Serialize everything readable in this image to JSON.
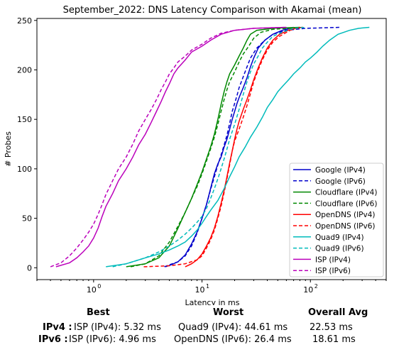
{
  "chart_data": {
    "type": "line",
    "title": "September_2022: DNS Latency Comparison with Akamai (mean)",
    "xlabel": "Latency in ms",
    "ylabel": "# Probes",
    "xscale": "log",
    "xlim": [
      0.3,
      500
    ],
    "ylim": [
      -12,
      252
    ],
    "x_ticks": [
      {
        "value": 1,
        "label": "10",
        "exp": "0"
      },
      {
        "value": 10,
        "label": "10",
        "exp": "1"
      },
      {
        "value": 100,
        "label": "10",
        "exp": "2"
      }
    ],
    "y_ticks": [
      0,
      50,
      100,
      150,
      200,
      250
    ],
    "grid": false,
    "legend_position": "lower-right",
    "series": [
      {
        "name": "Google (IPv4)",
        "color": "#0000cc",
        "dash": "solid",
        "points": [
          [
            4.6,
            1
          ],
          [
            5.2,
            3
          ],
          [
            6,
            6
          ],
          [
            7,
            13
          ],
          [
            8,
            24
          ],
          [
            9,
            36
          ],
          [
            10,
            50
          ],
          [
            11,
            64
          ],
          [
            12,
            80
          ],
          [
            13,
            95
          ],
          [
            14,
            105
          ],
          [
            15,
            112
          ],
          [
            16,
            122
          ],
          [
            17,
            130
          ],
          [
            18,
            140
          ],
          [
            19,
            150
          ],
          [
            20,
            158
          ],
          [
            21,
            166
          ],
          [
            22,
            172
          ],
          [
            24,
            182
          ],
          [
            26,
            192
          ],
          [
            28,
            203
          ],
          [
            30,
            212
          ],
          [
            33,
            222
          ],
          [
            38,
            230
          ],
          [
            45,
            236
          ],
          [
            55,
            240
          ],
          [
            70,
            243
          ]
        ]
      },
      {
        "name": "Google (IPv6)",
        "color": "#0000cc",
        "dash": "dashed",
        "points": [
          [
            4.5,
            1
          ],
          [
            5,
            3
          ],
          [
            6,
            6
          ],
          [
            7,
            12
          ],
          [
            8,
            22
          ],
          [
            9,
            35
          ],
          [
            10,
            50
          ],
          [
            11,
            64
          ],
          [
            12,
            79
          ],
          [
            13,
            92
          ],
          [
            14,
            104
          ],
          [
            15,
            114
          ],
          [
            16,
            124
          ],
          [
            17,
            134
          ],
          [
            18,
            146
          ],
          [
            19,
            158
          ],
          [
            20,
            166
          ],
          [
            21,
            174
          ],
          [
            22,
            182
          ],
          [
            24,
            193
          ],
          [
            26,
            203
          ],
          [
            28,
            212
          ],
          [
            32,
            222
          ],
          [
            38,
            230
          ],
          [
            45,
            236
          ],
          [
            60,
            240
          ],
          [
            90,
            242
          ],
          [
            190,
            243
          ]
        ]
      },
      {
        "name": "Cloudflare (IPv4)",
        "color": "#008800",
        "dash": "solid",
        "points": [
          [
            2,
            1
          ],
          [
            3,
            4
          ],
          [
            4,
            10
          ],
          [
            5,
            22
          ],
          [
            6,
            40
          ],
          [
            7,
            56
          ],
          [
            8,
            70
          ],
          [
            9,
            84
          ],
          [
            10,
            97
          ],
          [
            11,
            110
          ],
          [
            12,
            122
          ],
          [
            13,
            135
          ],
          [
            14,
            150
          ],
          [
            15,
            165
          ],
          [
            16,
            178
          ],
          [
            17,
            188
          ],
          [
            18,
            196
          ],
          [
            20,
            205
          ],
          [
            22,
            214
          ],
          [
            24,
            222
          ],
          [
            26,
            230
          ],
          [
            28,
            236
          ],
          [
            32,
            240
          ],
          [
            45,
            242
          ],
          [
            80,
            243
          ]
        ]
      },
      {
        "name": "Cloudflare (IPv6)",
        "color": "#008800",
        "dash": "dashed",
        "points": [
          [
            2.2,
            1
          ],
          [
            3,
            4
          ],
          [
            4,
            12
          ],
          [
            5,
            26
          ],
          [
            6,
            42
          ],
          [
            7,
            56
          ],
          [
            8,
            70
          ],
          [
            9,
            82
          ],
          [
            10,
            95
          ],
          [
            11,
            108
          ],
          [
            12,
            120
          ],
          [
            13,
            132
          ],
          [
            14,
            145
          ],
          [
            15,
            158
          ],
          [
            16,
            170
          ],
          [
            17,
            180
          ],
          [
            18,
            188
          ],
          [
            20,
            198
          ],
          [
            22,
            208
          ],
          [
            24,
            216
          ],
          [
            27,
            224
          ],
          [
            30,
            232
          ],
          [
            35,
            238
          ],
          [
            45,
            241
          ],
          [
            85,
            243
          ]
        ]
      },
      {
        "name": "OpenDNS (IPv4)",
        "color": "#ff0000",
        "dash": "solid",
        "points": [
          [
            7,
            1
          ],
          [
            8,
            4
          ],
          [
            9,
            8
          ],
          [
            10,
            14
          ],
          [
            11,
            22
          ],
          [
            12,
            30
          ],
          [
            13,
            40
          ],
          [
            14,
            52
          ],
          [
            15,
            65
          ],
          [
            16,
            78
          ],
          [
            17,
            92
          ],
          [
            18,
            106
          ],
          [
            19,
            118
          ],
          [
            20,
            130
          ],
          [
            21,
            140
          ],
          [
            22,
            148
          ],
          [
            24,
            160
          ],
          [
            26,
            170
          ],
          [
            28,
            180
          ],
          [
            30,
            190
          ],
          [
            33,
            202
          ],
          [
            36,
            212
          ],
          [
            40,
            222
          ],
          [
            45,
            230
          ],
          [
            52,
            236
          ],
          [
            65,
            241
          ],
          [
            85,
            243
          ]
        ]
      },
      {
        "name": "OpenDNS (IPv6)",
        "color": "#ff0000",
        "dash": "dashed",
        "points": [
          [
            2.9,
            1
          ],
          [
            5,
            2
          ],
          [
            7,
            4
          ],
          [
            9,
            8
          ],
          [
            10,
            12
          ],
          [
            11,
            20
          ],
          [
            12,
            28
          ],
          [
            13,
            38
          ],
          [
            14,
            50
          ],
          [
            15,
            62
          ],
          [
            16,
            76
          ],
          [
            17,
            90
          ],
          [
            18,
            104
          ],
          [
            19,
            118
          ],
          [
            20,
            128
          ],
          [
            22,
            140
          ],
          [
            24,
            152
          ],
          [
            26,
            164
          ],
          [
            28,
            176
          ],
          [
            30,
            188
          ],
          [
            33,
            200
          ],
          [
            36,
            210
          ],
          [
            40,
            220
          ],
          [
            45,
            228
          ],
          [
            52,
            234
          ],
          [
            65,
            240
          ],
          [
            80,
            243
          ]
        ]
      },
      {
        "name": "Quad9 (IPv4)",
        "color": "#00bbbb",
        "dash": "solid",
        "points": [
          [
            1.3,
            1
          ],
          [
            2,
            4
          ],
          [
            3,
            10
          ],
          [
            4,
            14
          ],
          [
            5,
            18
          ],
          [
            6,
            22
          ],
          [
            7,
            26
          ],
          [
            8,
            32
          ],
          [
            9,
            38
          ],
          [
            10,
            45
          ],
          [
            11,
            52
          ],
          [
            12,
            58
          ],
          [
            14,
            68
          ],
          [
            16,
            80
          ],
          [
            18,
            92
          ],
          [
            20,
            102
          ],
          [
            22,
            112
          ],
          [
            25,
            122
          ],
          [
            28,
            132
          ],
          [
            32,
            142
          ],
          [
            36,
            152
          ],
          [
            40,
            162
          ],
          [
            45,
            170
          ],
          [
            50,
            178
          ],
          [
            56,
            184
          ],
          [
            63,
            190
          ],
          [
            70,
            196
          ],
          [
            80,
            202
          ],
          [
            90,
            208
          ],
          [
            100,
            212
          ],
          [
            115,
            218
          ],
          [
            130,
            224
          ],
          [
            150,
            230
          ],
          [
            180,
            236
          ],
          [
            230,
            240
          ],
          [
            280,
            242
          ],
          [
            350,
            243
          ]
        ]
      },
      {
        "name": "Quad9 (IPv6)",
        "color": "#00bbbb",
        "dash": "dashed",
        "points": [
          [
            1.5,
            1
          ],
          [
            2,
            4
          ],
          [
            3,
            10
          ],
          [
            4,
            16
          ],
          [
            5,
            22
          ],
          [
            6,
            28
          ],
          [
            7,
            34
          ],
          [
            8,
            40
          ],
          [
            9,
            46
          ],
          [
            10,
            52
          ],
          [
            11,
            60
          ],
          [
            12,
            70
          ],
          [
            13,
            80
          ],
          [
            14,
            90
          ],
          [
            15,
            100
          ],
          [
            16,
            110
          ],
          [
            17,
            120
          ],
          [
            18,
            130
          ],
          [
            20,
            145
          ],
          [
            22,
            160
          ],
          [
            24,
            175
          ],
          [
            26,
            188
          ],
          [
            28,
            198
          ],
          [
            30,
            206
          ],
          [
            33,
            214
          ],
          [
            36,
            222
          ],
          [
            40,
            228
          ],
          [
            45,
            234
          ],
          [
            55,
            238
          ],
          [
            70,
            242
          ],
          [
            90,
            243
          ]
        ]
      },
      {
        "name": "ISP (IPv4)",
        "color": "#bb00bb",
        "dash": "solid",
        "points": [
          [
            0.45,
            1
          ],
          [
            0.6,
            5
          ],
          [
            0.7,
            10
          ],
          [
            0.8,
            16
          ],
          [
            0.9,
            22
          ],
          [
            1,
            30
          ],
          [
            1.1,
            40
          ],
          [
            1.2,
            52
          ],
          [
            1.3,
            62
          ],
          [
            1.5,
            75
          ],
          [
            1.7,
            88
          ],
          [
            2,
            100
          ],
          [
            2.3,
            112
          ],
          [
            2.6,
            124
          ],
          [
            3,
            135
          ],
          [
            3.4,
            147
          ],
          [
            3.8,
            158
          ],
          [
            4.2,
            168
          ],
          [
            4.6,
            178
          ],
          [
            5,
            186
          ],
          [
            5.5,
            196
          ],
          [
            6,
            202
          ],
          [
            7,
            210
          ],
          [
            8,
            218
          ],
          [
            10,
            224
          ],
          [
            12,
            230
          ],
          [
            15,
            236
          ],
          [
            20,
            240
          ],
          [
            30,
            242
          ],
          [
            60,
            243
          ]
        ]
      },
      {
        "name": "ISP (IPv6)",
        "color": "#bb00bb",
        "dash": "dashed",
        "points": [
          [
            0.4,
            1
          ],
          [
            0.5,
            5
          ],
          [
            0.6,
            12
          ],
          [
            0.7,
            20
          ],
          [
            0.8,
            28
          ],
          [
            0.9,
            36
          ],
          [
            1,
            44
          ],
          [
            1.1,
            54
          ],
          [
            1.2,
            64
          ],
          [
            1.3,
            74
          ],
          [
            1.5,
            88
          ],
          [
            1.7,
            100
          ],
          [
            2,
            112
          ],
          [
            2.3,
            125
          ],
          [
            2.6,
            138
          ],
          [
            3,
            150
          ],
          [
            3.4,
            160
          ],
          [
            3.8,
            170
          ],
          [
            4.2,
            180
          ],
          [
            4.6,
            188
          ],
          [
            5,
            196
          ],
          [
            5.5,
            202
          ],
          [
            6,
            208
          ],
          [
            7,
            214
          ],
          [
            8,
            220
          ],
          [
            10,
            226
          ],
          [
            12,
            232
          ],
          [
            15,
            237
          ],
          [
            20,
            240
          ],
          [
            30,
            242
          ],
          [
            60,
            243
          ]
        ]
      }
    ]
  },
  "summary": {
    "headers": {
      "best": "Best",
      "worst": "Worst",
      "overall": "Overall Avg"
    },
    "rows": [
      {
        "label": "IPv4 :",
        "best": "ISP (IPv4): 5.32 ms",
        "worst": "Quad9 (IPv4): 44.61 ms",
        "overall": "22.53 ms"
      },
      {
        "label": "IPv6 :",
        "best": "ISP (IPv6): 4.96 ms",
        "worst": "OpenDNS (IPv6): 26.4 ms",
        "overall": "18.61 ms"
      }
    ]
  }
}
